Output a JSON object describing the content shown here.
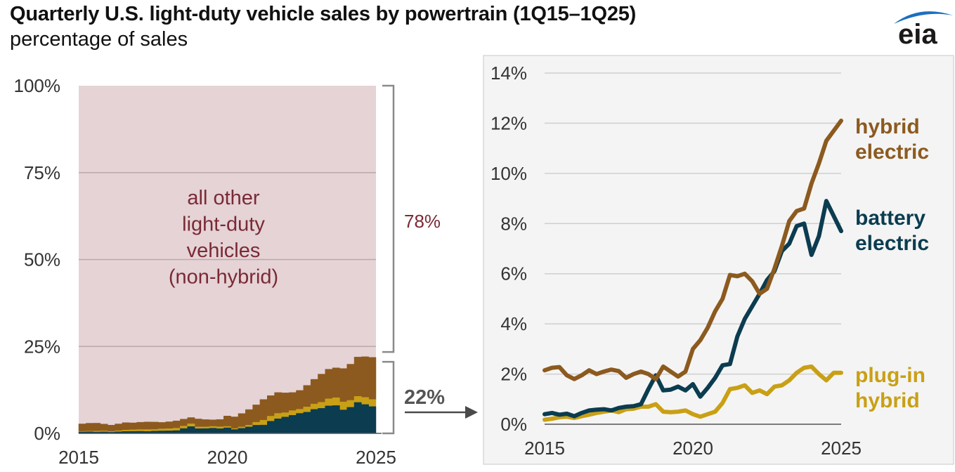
{
  "title": "Quarterly U.S. light-duty vehicle sales by powertrain (1Q15–1Q25)",
  "subtitle": "percentage of sales",
  "logo_text": "eia",
  "colors": {
    "other": "#e5d3d6",
    "hybrid": "#8c5a1f",
    "battery": "#0b3c50",
    "plugin": "#c9a015",
    "bracket": "#8a8a8a",
    "label_other": "#7a2a35",
    "label_share": "#555555",
    "grid": "#cfcfcf",
    "panel_bg": "#f4f4f4",
    "logo_blue": "#1d6fbf"
  },
  "chart_data": [
    {
      "type": "area",
      "stacked": true,
      "title": "",
      "xlabel": "",
      "ylabel": "",
      "ylim": [
        0,
        100
      ],
      "xlim": [
        2015,
        2025
      ],
      "x_ticks": [
        "2015",
        "2020",
        "2025"
      ],
      "y_ticks": [
        "0%",
        "25%",
        "50%",
        "75%",
        "100%"
      ],
      "inner_label": [
        "all other",
        "light-duty",
        "vehicles",
        "(non-hybrid)"
      ],
      "bracket_labels": {
        "other": "78%",
        "electrified": "22%"
      },
      "series": [
        {
          "name": "battery electric",
          "color_key": "battery"
        },
        {
          "name": "plug-in hybrid",
          "color_key": "plugin"
        },
        {
          "name": "hybrid electric",
          "color_key": "hybrid"
        },
        {
          "name": "all other light-duty vehicles (non-hybrid)",
          "color_key": "other"
        }
      ]
    },
    {
      "type": "line",
      "title": "",
      "xlabel": "",
      "ylabel": "",
      "ylim": [
        0,
        14
      ],
      "xlim": [
        2015,
        2025
      ],
      "x_ticks": [
        "2015",
        "2020",
        "2025"
      ],
      "y_ticks": [
        "0%",
        "2%",
        "4%",
        "6%",
        "8%",
        "10%",
        "12%",
        "14%"
      ],
      "x": [
        2015.0,
        2015.25,
        2015.5,
        2015.75,
        2016.0,
        2016.25,
        2016.5,
        2016.75,
        2017.0,
        2017.25,
        2017.5,
        2017.75,
        2018.0,
        2018.25,
        2018.5,
        2018.75,
        2019.0,
        2019.25,
        2019.5,
        2019.75,
        2020.0,
        2020.25,
        2020.5,
        2020.75,
        2021.0,
        2021.25,
        2021.5,
        2021.75,
        2022.0,
        2022.25,
        2022.5,
        2022.75,
        2023.0,
        2023.25,
        2023.5,
        2023.75,
        2024.0,
        2024.25,
        2024.5,
        2024.75,
        2025.0
      ],
      "series": [
        {
          "name": "hybrid electric",
          "label_lines": [
            "hybrid",
            "electric"
          ],
          "color_key": "hybrid",
          "values": [
            2.15,
            2.25,
            2.28,
            1.95,
            1.8,
            1.95,
            2.15,
            2.0,
            2.1,
            2.18,
            2.12,
            1.85,
            2.0,
            2.1,
            2.0,
            1.8,
            2.3,
            2.1,
            1.9,
            2.1,
            3.0,
            3.35,
            3.85,
            4.5,
            5.0,
            5.95,
            5.9,
            6.0,
            5.7,
            5.2,
            5.4,
            6.2,
            7.1,
            8.1,
            8.5,
            8.6,
            9.6,
            10.4,
            11.3,
            11.7,
            12.1
          ]
        },
        {
          "name": "battery electric",
          "label_lines": [
            "battery",
            "electric"
          ],
          "color_key": "battery",
          "values": [
            0.4,
            0.45,
            0.38,
            0.42,
            0.32,
            0.45,
            0.55,
            0.58,
            0.6,
            0.55,
            0.65,
            0.7,
            0.72,
            0.8,
            1.4,
            1.95,
            1.35,
            1.38,
            1.5,
            1.35,
            1.6,
            1.1,
            1.45,
            1.85,
            2.35,
            2.4,
            3.5,
            4.2,
            4.7,
            5.2,
            5.75,
            6.1,
            6.9,
            7.2,
            7.9,
            8.0,
            6.75,
            7.5,
            8.9,
            8.3,
            7.7
          ]
        },
        {
          "name": "plug-in hybrid",
          "label_lines": [
            "plug-in",
            "hybrid"
          ],
          "color_key": "plugin",
          "values": [
            0.18,
            0.22,
            0.28,
            0.3,
            0.25,
            0.32,
            0.38,
            0.45,
            0.5,
            0.55,
            0.48,
            0.6,
            0.62,
            0.7,
            0.7,
            0.8,
            0.5,
            0.48,
            0.5,
            0.55,
            0.4,
            0.3,
            0.4,
            0.5,
            0.85,
            1.4,
            1.45,
            1.55,
            1.25,
            1.35,
            1.2,
            1.5,
            1.55,
            1.75,
            2.05,
            2.25,
            2.3,
            2.0,
            1.75,
            2.05,
            2.05
          ]
        }
      ]
    }
  ]
}
